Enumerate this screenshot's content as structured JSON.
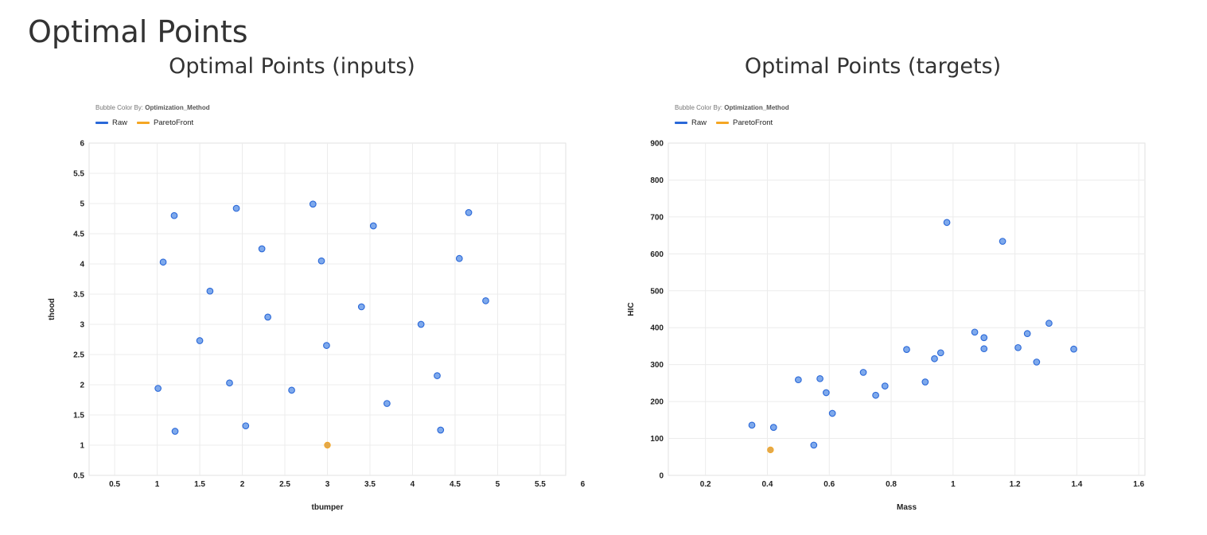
{
  "page": {
    "title": "Optimal Points"
  },
  "colors": {
    "raw": "#2a68d8",
    "raw_fill": "#7ea9ec",
    "pareto": "#f5a623",
    "pareto_fill": "#e3a94a",
    "grid": "#ececec"
  },
  "chart_data": [
    {
      "type": "scatter",
      "title": "Optimal Points (inputs)",
      "color_by": {
        "label": "Bubble Color By:",
        "field": "Optimization_Method"
      },
      "legend": [
        {
          "name": "Raw"
        },
        {
          "name": "ParetoFront"
        }
      ],
      "xlabel": "tbumper",
      "ylabel": "thood",
      "xlim": [
        0.2,
        5.8
      ],
      "ylim": [
        0.5,
        6
      ],
      "xticks": [
        "0.5",
        "1",
        "1.5",
        "2",
        "2.5",
        "3",
        "3.5",
        "4",
        "4.5",
        "5",
        "5.5",
        "6"
      ],
      "yticks": [
        "0.5",
        "1",
        "1.5",
        "2",
        "2.5",
        "3",
        "3.5",
        "4",
        "4.5",
        "5",
        "5.5",
        "6"
      ],
      "grid": true,
      "series": [
        {
          "name": "Raw",
          "points": [
            [
              1.2,
              4.8
            ],
            [
              1.07,
              4.03
            ],
            [
              1.93,
              4.92
            ],
            [
              2.83,
              4.99
            ],
            [
              2.23,
              4.25
            ],
            [
              2.93,
              4.05
            ],
            [
              3.54,
              4.63
            ],
            [
              4.66,
              4.85
            ],
            [
              4.55,
              4.09
            ],
            [
              1.62,
              3.55
            ],
            [
              3.4,
              3.29
            ],
            [
              4.86,
              3.39
            ],
            [
              2.3,
              3.12
            ],
            [
              1.5,
              2.73
            ],
            [
              4.1,
              3.0
            ],
            [
              2.99,
              2.65
            ],
            [
              4.29,
              2.15
            ],
            [
              1.01,
              1.94
            ],
            [
              1.85,
              2.03
            ],
            [
              2.58,
              1.91
            ],
            [
              3.7,
              1.69
            ],
            [
              1.21,
              1.23
            ],
            [
              2.04,
              1.32
            ],
            [
              4.33,
              1.25
            ]
          ]
        },
        {
          "name": "ParetoFront",
          "points": [
            [
              3.0,
              1.0
            ]
          ]
        }
      ]
    },
    {
      "type": "scatter",
      "title": "Optimal Points (targets)",
      "color_by": {
        "label": "Bubble Color By:",
        "field": "Optimization_Method"
      },
      "legend": [
        {
          "name": "Raw"
        },
        {
          "name": "ParetoFront"
        }
      ],
      "xlabel": "Mass",
      "ylabel": "HIC",
      "xlim": [
        0.08,
        1.62
      ],
      "ylim": [
        0,
        900
      ],
      "xticks": [
        "0.2",
        "0.4",
        "0.6",
        "0.8",
        "1",
        "1.2",
        "1.4",
        "1.6"
      ],
      "yticks": [
        "0",
        "100",
        "200",
        "300",
        "400",
        "500",
        "600",
        "700",
        "800",
        "900"
      ],
      "grid": true,
      "series": [
        {
          "name": "Raw",
          "points": [
            [
              0.98,
              685
            ],
            [
              1.16,
              634
            ],
            [
              1.07,
              388
            ],
            [
              1.1,
              373
            ],
            [
              1.1,
              343
            ],
            [
              1.24,
              384
            ],
            [
              1.31,
              412
            ],
            [
              1.21,
              346
            ],
            [
              1.39,
              342
            ],
            [
              1.27,
              307
            ],
            [
              0.85,
              341
            ],
            [
              0.96,
              332
            ],
            [
              0.94,
              316
            ],
            [
              0.91,
              253
            ],
            [
              0.71,
              279
            ],
            [
              0.78,
              242
            ],
            [
              0.75,
              217
            ],
            [
              0.5,
              259
            ],
            [
              0.57,
              262
            ],
            [
              0.59,
              224
            ],
            [
              0.61,
              168
            ],
            [
              0.35,
              136
            ],
            [
              0.42,
              130
            ],
            [
              0.55,
              82
            ]
          ]
        },
        {
          "name": "ParetoFront",
          "points": [
            [
              0.41,
              69
            ]
          ]
        }
      ]
    }
  ]
}
